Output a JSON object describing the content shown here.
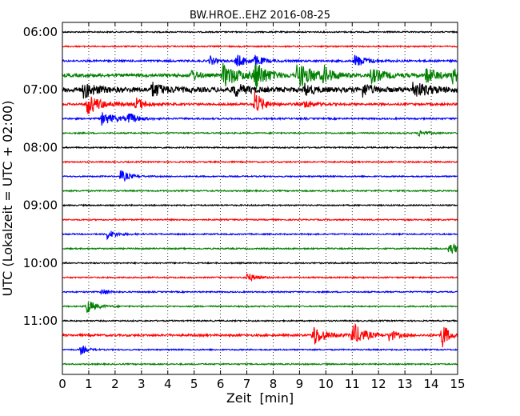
{
  "chart_data": {
    "type": "line",
    "title": "BW.HROE..EHZ 2016-08-25",
    "xlabel": "Zeit  [min]",
    "ylabel": "UTC (Lokalzeit = UTC + 02:00)",
    "xlim": [
      0,
      15
    ],
    "x_ticks": [
      0,
      1,
      2,
      3,
      4,
      5,
      6,
      7,
      8,
      9,
      10,
      11,
      12,
      13,
      14,
      15
    ],
    "x_tick_labels": [
      "0",
      "1",
      "2",
      "3",
      "4",
      "5",
      "6",
      "7",
      "8",
      "9",
      "10",
      "11",
      "12",
      "13",
      "14",
      "15"
    ],
    "y_tick_labels": [
      "06:00",
      "07:00",
      "08:00",
      "09:00",
      "10:00",
      "11:00"
    ],
    "vertical_grid": "dotted",
    "trace_interval_min": 15,
    "traces": [
      {
        "start": "06:00",
        "color": "#000000",
        "noise": 0.8,
        "events": []
      },
      {
        "start": "06:15",
        "color": "#ff0000",
        "noise": 0.8,
        "events": []
      },
      {
        "start": "06:30",
        "color": "#0000ff",
        "noise": 1.2,
        "events": [
          {
            "t": 5.6,
            "amp": 6,
            "dur": 0.2
          },
          {
            "t": 6.6,
            "amp": 8,
            "dur": 0.4
          },
          {
            "t": 7.3,
            "amp": 6,
            "dur": 0.3
          },
          {
            "t": 11.1,
            "amp": 8,
            "dur": 0.4
          }
        ]
      },
      {
        "start": "06:45",
        "color": "#008000",
        "noise": 2.0,
        "events": [
          {
            "t": 4.9,
            "amp": 8,
            "dur": 0.2
          },
          {
            "t": 6.1,
            "amp": 14,
            "dur": 0.6
          },
          {
            "t": 7.3,
            "amp": 18,
            "dur": 0.4
          },
          {
            "t": 8.9,
            "amp": 16,
            "dur": 0.6
          },
          {
            "t": 9.9,
            "amp": 10,
            "dur": 0.3
          },
          {
            "t": 11.7,
            "amp": 9,
            "dur": 0.5
          },
          {
            "t": 13.8,
            "amp": 10,
            "dur": 0.4
          },
          {
            "t": 14.8,
            "amp": 9,
            "dur": 0.3
          }
        ]
      },
      {
        "start": "07:00",
        "color": "#000000",
        "noise": 3.0,
        "events": [
          {
            "t": 0.8,
            "amp": 10,
            "dur": 0.4
          },
          {
            "t": 3.4,
            "amp": 9,
            "dur": 0.4
          },
          {
            "t": 6.5,
            "amp": 8,
            "dur": 0.4
          },
          {
            "t": 9.2,
            "amp": 7,
            "dur": 0.3
          },
          {
            "t": 11.4,
            "amp": 8,
            "dur": 0.3
          },
          {
            "t": 13.3,
            "amp": 9,
            "dur": 0.6
          }
        ]
      },
      {
        "start": "07:15",
        "color": "#ff0000",
        "noise": 1.3,
        "events": [
          {
            "t": 0.9,
            "amp": 14,
            "dur": 0.5
          },
          {
            "t": 2.8,
            "amp": 8,
            "dur": 0.3
          },
          {
            "t": 7.3,
            "amp": 16,
            "dur": 0.3
          },
          {
            "t": 9.2,
            "amp": 6,
            "dur": 0.3
          }
        ]
      },
      {
        "start": "07:30",
        "color": "#0000ff",
        "noise": 1.0,
        "events": [
          {
            "t": 1.5,
            "amp": 8,
            "dur": 0.5
          },
          {
            "t": 2.5,
            "amp": 7,
            "dur": 0.3
          }
        ]
      },
      {
        "start": "07:45",
        "color": "#008000",
        "noise": 0.8,
        "events": [
          {
            "t": 13.5,
            "amp": 4,
            "dur": 0.3
          }
        ]
      },
      {
        "start": "08:00",
        "color": "#000000",
        "noise": 0.8,
        "events": []
      },
      {
        "start": "08:15",
        "color": "#ff0000",
        "noise": 0.8,
        "events": []
      },
      {
        "start": "08:30",
        "color": "#0000ff",
        "noise": 0.8,
        "events": [
          {
            "t": 2.2,
            "amp": 8,
            "dur": 0.3
          }
        ]
      },
      {
        "start": "08:45",
        "color": "#008000",
        "noise": 0.8,
        "events": []
      },
      {
        "start": "09:00",
        "color": "#000000",
        "noise": 0.8,
        "events": []
      },
      {
        "start": "09:15",
        "color": "#ff0000",
        "noise": 0.8,
        "events": []
      },
      {
        "start": "09:30",
        "color": "#0000ff",
        "noise": 0.8,
        "events": [
          {
            "t": 1.7,
            "amp": 6,
            "dur": 0.3
          }
        ]
      },
      {
        "start": "09:45",
        "color": "#008000",
        "noise": 0.8,
        "events": [
          {
            "t": 14.7,
            "amp": 9,
            "dur": 0.3
          }
        ]
      },
      {
        "start": "10:00",
        "color": "#000000",
        "noise": 0.8,
        "events": []
      },
      {
        "start": "10:15",
        "color": "#ff0000",
        "noise": 0.8,
        "events": [
          {
            "t": 7.0,
            "amp": 6,
            "dur": 0.3
          }
        ]
      },
      {
        "start": "10:30",
        "color": "#0000ff",
        "noise": 0.8,
        "events": [
          {
            "t": 1.5,
            "amp": 5,
            "dur": 0.2
          }
        ]
      },
      {
        "start": "10:45",
        "color": "#008000",
        "noise": 0.8,
        "events": [
          {
            "t": 0.9,
            "amp": 10,
            "dur": 0.3
          }
        ]
      },
      {
        "start": "11:00",
        "color": "#000000",
        "noise": 0.8,
        "events": []
      },
      {
        "start": "11:15",
        "color": "#ff0000",
        "noise": 1.3,
        "events": [
          {
            "t": 9.5,
            "amp": 14,
            "dur": 0.4
          },
          {
            "t": 11.0,
            "amp": 16,
            "dur": 0.4
          },
          {
            "t": 12.4,
            "amp": 7,
            "dur": 0.3
          },
          {
            "t": 14.4,
            "amp": 20,
            "dur": 0.2
          }
        ]
      },
      {
        "start": "11:30",
        "color": "#0000ff",
        "noise": 0.8,
        "events": [
          {
            "t": 0.7,
            "amp": 6,
            "dur": 0.2
          }
        ]
      },
      {
        "start": "11:45",
        "color": "#008000",
        "noise": 0.8,
        "events": []
      }
    ]
  }
}
